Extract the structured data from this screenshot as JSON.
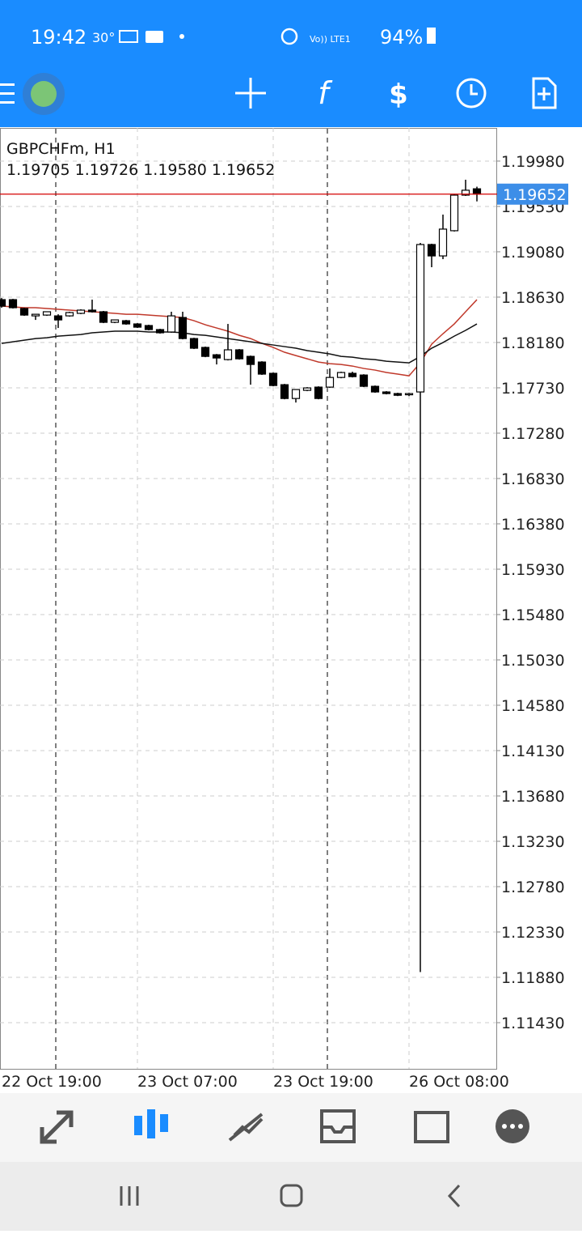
{
  "status_bar": {
    "time": "19:42",
    "temperature": "30°",
    "network": "Vo)) LTE1",
    "battery": "94%"
  },
  "toolbar": {
    "function_icon": "f"
  },
  "chart_data": {
    "type": "candlestick",
    "symbol": "GBPCHFm, H1",
    "ohlc_label": "1.19705 1.19726 1.19580 1.19652",
    "categories": [
      "22 Oct 19:00",
      null,
      null,
      null,
      null,
      null,
      null,
      null,
      null,
      null,
      null,
      null,
      "23 Oct 07:00",
      null,
      null,
      null,
      null,
      null,
      null,
      null,
      null,
      null,
      null,
      null,
      "23 Oct 19:00",
      null,
      null,
      null,
      null,
      null,
      null,
      null,
      null,
      null,
      null,
      null,
      "26 Oct 08:00",
      null,
      null,
      null,
      null,
      null,
      null
    ],
    "ohlc": [
      [
        1.18605,
        1.18621,
        1.18525,
        1.18541
      ],
      [
        1.18605,
        1.18613,
        1.18517,
        1.18525
      ],
      [
        1.18517,
        1.18525,
        1.18444,
        1.18452
      ],
      [
        1.18444,
        1.1846,
        1.18404,
        1.1846
      ],
      [
        1.18452,
        1.18485,
        1.18444,
        1.18485
      ],
      [
        1.18444,
        1.1846,
        1.18324,
        1.18404
      ],
      [
        1.18444,
        1.18485,
        1.18436,
        1.18477
      ],
      [
        1.18469,
        1.18509,
        1.18461,
        1.18501
      ],
      [
        1.18501,
        1.18605,
        1.18477,
        1.18485
      ],
      [
        1.18485,
        1.18493,
        1.18372,
        1.1838
      ],
      [
        1.1838,
        1.18404,
        1.18372,
        1.18404
      ],
      [
        1.18396,
        1.18404,
        1.18356,
        1.18364
      ],
      [
        1.18364,
        1.18372,
        1.18324,
        1.18332
      ],
      [
        1.18348,
        1.18356,
        1.183,
        1.18308
      ],
      [
        1.18308,
        1.18316,
        1.18268,
        1.18276
      ],
      [
        1.18284,
        1.18485,
        1.18276,
        1.18444
      ],
      [
        1.18428,
        1.18485,
        1.18211,
        1.18219
      ],
      [
        1.18219,
        1.18227,
        1.18115,
        1.18123
      ],
      [
        1.18131,
        1.18139,
        1.18034,
        1.18042
      ],
      [
        1.18058,
        1.18066,
        1.17962,
        1.18026
      ],
      [
        1.1801,
        1.18364,
        1.18002,
        1.18107
      ],
      [
        1.18107,
        1.18115,
        1.1801,
        1.18018
      ],
      [
        1.18042,
        1.1805,
        1.17761,
        1.17962
      ],
      [
        1.17986,
        1.17994,
        1.17858,
        1.17866
      ],
      [
        1.17874,
        1.17882,
        1.17745,
        1.17753
      ],
      [
        1.17761,
        1.17769,
        1.17616,
        1.17624
      ],
      [
        1.17624,
        1.17713,
        1.17584,
        1.17713
      ],
      [
        1.17705,
        1.17737,
        1.17697,
        1.17729
      ],
      [
        1.17737,
        1.17745,
        1.17616,
        1.17624
      ],
      [
        1.17737,
        1.17922,
        1.17729,
        1.17833
      ],
      [
        1.17833,
        1.1789,
        1.17825,
        1.17882
      ],
      [
        1.17874,
        1.1789,
        1.17833,
        1.17841
      ],
      [
        1.17857,
        1.17865,
        1.17737,
        1.17745
      ],
      [
        1.17745,
        1.17753,
        1.17681,
        1.17689
      ],
      [
        1.17689,
        1.17697,
        1.17665,
        1.17673
      ],
      [
        1.17673,
        1.17681,
        1.17648,
        1.17656
      ],
      [
        1.17665,
        1.17681,
        1.17648,
        1.17673
      ],
      [
        1.17689,
        1.19168,
        1.11932,
        1.19152
      ],
      [
        1.19152,
        1.1916,
        1.18927,
        1.19039
      ],
      [
        1.19039,
        1.19449,
        1.19007,
        1.19305
      ],
      [
        1.19289,
        1.1965,
        1.19281,
        1.19642
      ],
      [
        1.19642,
        1.19795,
        1.19634,
        1.19691
      ],
      [
        1.19705,
        1.19726,
        1.1958,
        1.19652
      ]
    ],
    "series": [
      {
        "color": "#c0392b",
        "values": [
          1.18541,
          1.18533,
          1.18525,
          1.18525,
          1.18517,
          1.18509,
          1.18501,
          1.18493,
          1.18485,
          1.18477,
          1.18469,
          1.1846,
          1.1846,
          1.18452,
          1.18444,
          1.18436,
          1.18428,
          1.18396,
          1.18356,
          1.18324,
          1.18292,
          1.18251,
          1.18219,
          1.18171,
          1.18131,
          1.18083,
          1.1805,
          1.18018,
          1.17986,
          1.1797,
          1.17962,
          1.17946,
          1.17922,
          1.17906,
          1.17882,
          1.17866,
          1.17849,
          1.17978,
          1.18163,
          1.18267,
          1.18364,
          1.18485,
          1.18605
        ]
      },
      {
        "color": "#111111",
        "values": [
          1.18171,
          1.18187,
          1.18203,
          1.18219,
          1.18227,
          1.18243,
          1.18251,
          1.18259,
          1.18276,
          1.18284,
          1.18292,
          1.18292,
          1.18292,
          1.18284,
          1.18284,
          1.18284,
          1.18276,
          1.18259,
          1.18251,
          1.18235,
          1.18219,
          1.18203,
          1.18187,
          1.18171,
          1.18155,
          1.18139,
          1.18123,
          1.18099,
          1.18083,
          1.18066,
          1.18042,
          1.18034,
          1.18018,
          1.1801,
          1.17994,
          1.17986,
          1.17978,
          1.18042,
          1.18123,
          1.18179,
          1.18243,
          1.183,
          1.18364
        ]
      }
    ],
    "price_line": {
      "value": 1.19652,
      "color": "#d40000"
    },
    "up_color": "#ffffff",
    "down_color": "#000000",
    "grid": true,
    "ylim": [
      1.10972,
      1.20309
    ],
    "yticks": [
      {
        "value": 1.1998,
        "label": "1.19980"
      },
      {
        "value": 1.1953,
        "label": "1.19530"
      },
      {
        "value": 1.1908,
        "label": "1.19080"
      },
      {
        "value": 1.1863,
        "label": "1.18630"
      },
      {
        "value": 1.1818,
        "label": "1.18180"
      },
      {
        "value": 1.1773,
        "label": "1.17730"
      },
      {
        "value": 1.1728,
        "label": "1.17280"
      },
      {
        "value": 1.1683,
        "label": "1.16830"
      },
      {
        "value": 1.1638,
        "label": "1.16380"
      },
      {
        "value": 1.1593,
        "label": "1.15930"
      },
      {
        "value": 1.1548,
        "label": "1.15480"
      },
      {
        "value": 1.1503,
        "label": "1.15030"
      },
      {
        "value": 1.1458,
        "label": "1.14580"
      },
      {
        "value": 1.1413,
        "label": "1.14130"
      },
      {
        "value": 1.1368,
        "label": "1.13680"
      },
      {
        "value": 1.1323,
        "label": "1.13230"
      },
      {
        "value": 1.1278,
        "label": "1.12780"
      },
      {
        "value": 1.1233,
        "label": "1.12330"
      },
      {
        "value": 1.1188,
        "label": "1.11880"
      },
      {
        "value": 1.1143,
        "label": "1.11430"
      }
    ]
  }
}
